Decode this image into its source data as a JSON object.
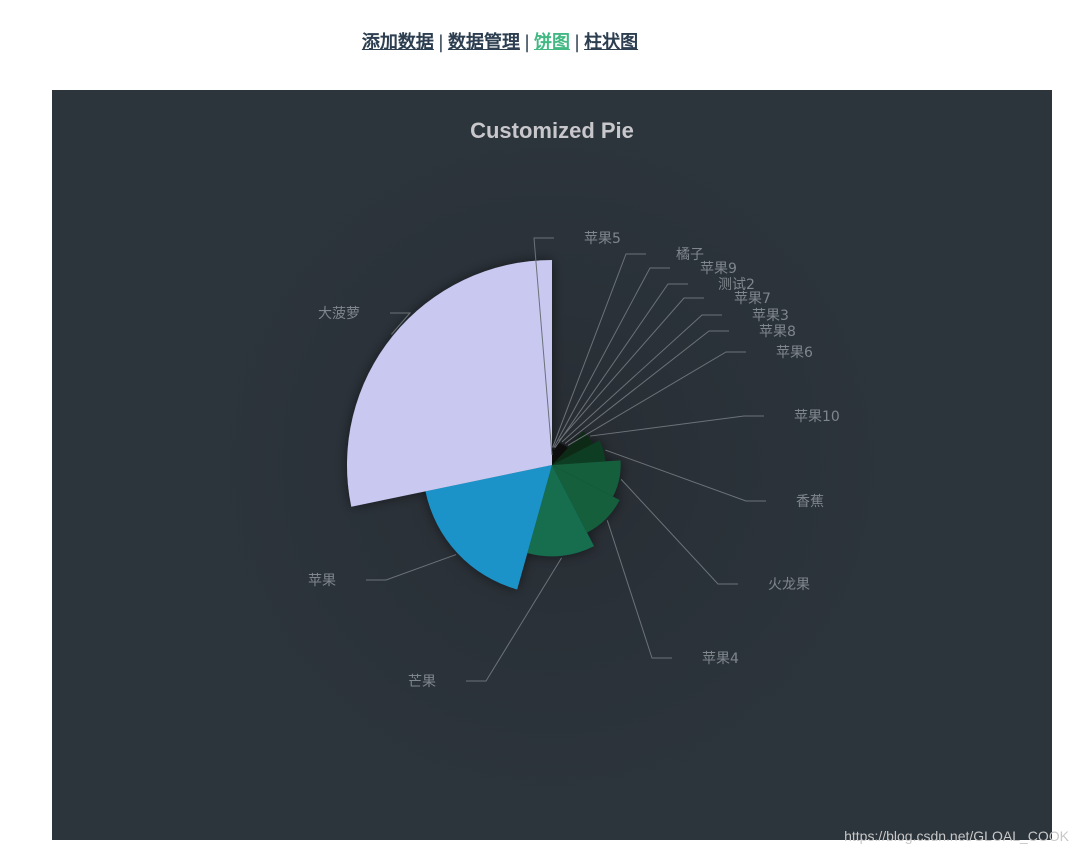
{
  "nav": {
    "items": [
      {
        "label": "添加数据",
        "active": false
      },
      {
        "label": "数据管理",
        "active": false
      },
      {
        "label": "饼图",
        "active": true
      },
      {
        "label": "柱状图",
        "active": false
      }
    ],
    "separator": "|"
  },
  "watermark": "https://blog.csdn.net/GLOAL_COOK",
  "colors": {
    "page_bg": "#ffffff",
    "chart_bg": "#2c343c",
    "nav_text": "#2c3e50",
    "nav_active": "#42b983",
    "label_text": "#7f868c",
    "title_text": "#c8c8cc"
  },
  "chart_data": {
    "type": "pie",
    "title": "Customized Pie",
    "rose_type": "radius",
    "start_angle_deg": 90,
    "slices": [
      {
        "name": "苹果5",
        "value": 0
      },
      {
        "name": "橘子",
        "value": 1
      },
      {
        "name": "苹果9",
        "value": 1
      },
      {
        "name": "测试2",
        "value": 1
      },
      {
        "name": "苹果7",
        "value": 2
      },
      {
        "name": "苹果3",
        "value": 2
      },
      {
        "name": "苹果8",
        "value": 2
      },
      {
        "name": "苹果6",
        "value": 2
      },
      {
        "name": "苹果10",
        "value": 5
      },
      {
        "name": "香蕉",
        "value": 6
      },
      {
        "name": "火龙果",
        "value": 8
      },
      {
        "name": "苹果4",
        "value": 9
      },
      {
        "name": "芒果",
        "value": 11
      },
      {
        "name": "苹果",
        "value": 16
      },
      {
        "name": "大菠萝",
        "value": 26
      }
    ]
  }
}
